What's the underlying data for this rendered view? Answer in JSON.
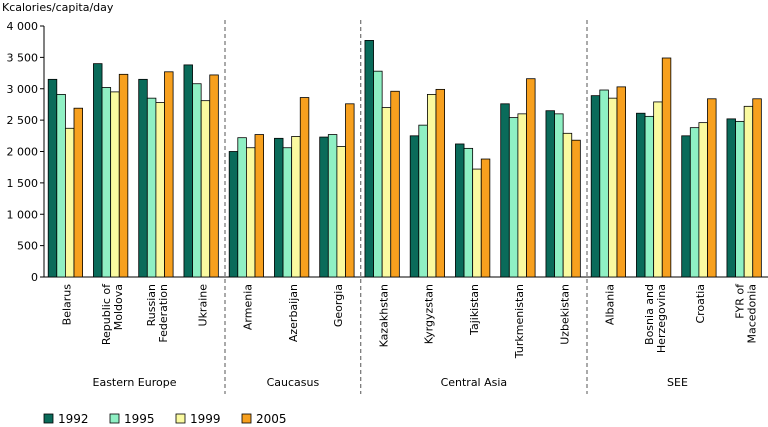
{
  "chart_data": {
    "type": "bar",
    "ylabel": "Kcalories/capita/day",
    "ylim": [
      0,
      4000
    ],
    "yticks": [
      "0",
      "500",
      "1 000",
      "1 500",
      "2 000",
      "2 500",
      "3 000",
      "3 500",
      "4 000"
    ],
    "ytick_values": [
      0,
      500,
      1000,
      1500,
      2000,
      2500,
      3000,
      3500,
      4000
    ],
    "categories": [
      [
        "Belarus"
      ],
      [
        "Republic of",
        "Moldova"
      ],
      [
        "Russian",
        "Federation"
      ],
      [
        "Ukraine"
      ],
      [
        "Armenia"
      ],
      [
        "Azerbaijan"
      ],
      [
        "Georgia"
      ],
      [
        "Kazakhstan"
      ],
      [
        "Kyrgyzstan"
      ],
      [
        "Tajikistan"
      ],
      [
        "Turkmenistan"
      ],
      [
        "Uzbekistan"
      ],
      [
        "Albania"
      ],
      [
        "Bosnia and",
        "Herzegovina"
      ],
      [
        "Croatia"
      ],
      [
        "FYR of",
        "Macedonia"
      ]
    ],
    "groups": [
      {
        "name": "Eastern Europe",
        "count": 4
      },
      {
        "name": "Caucasus",
        "count": 3
      },
      {
        "name": "Central Asia",
        "count": 5
      },
      {
        "name": "SEE",
        "count": 4
      }
    ],
    "series": [
      {
        "name": "1992",
        "color": "#0a6b5a",
        "values": [
          3150,
          3400,
          3150,
          3380,
          2000,
          2210,
          2230,
          3770,
          2250,
          2120,
          2760,
          2650,
          2890,
          2610,
          2250,
          2520
        ]
      },
      {
        "name": "1995",
        "color": "#8ff0c4",
        "values": [
          2910,
          3020,
          2850,
          3080,
          2220,
          2060,
          2270,
          3280,
          2420,
          2050,
          2540,
          2600,
          2980,
          2560,
          2380,
          2480
        ]
      },
      {
        "name": "1999",
        "color": "#fafaa0",
        "values": [
          2370,
          2950,
          2780,
          2810,
          2060,
          2240,
          2080,
          2700,
          2910,
          1720,
          2600,
          2290,
          2850,
          2790,
          2460,
          2720
        ]
      },
      {
        "name": "2005",
        "color": "#f7a01e",
        "values": [
          2690,
          3230,
          3270,
          3220,
          2270,
          2860,
          2760,
          2960,
          2990,
          1880,
          3160,
          2180,
          3030,
          3490,
          2840,
          2840
        ]
      }
    ],
    "legend": "bottom",
    "grid": false
  }
}
